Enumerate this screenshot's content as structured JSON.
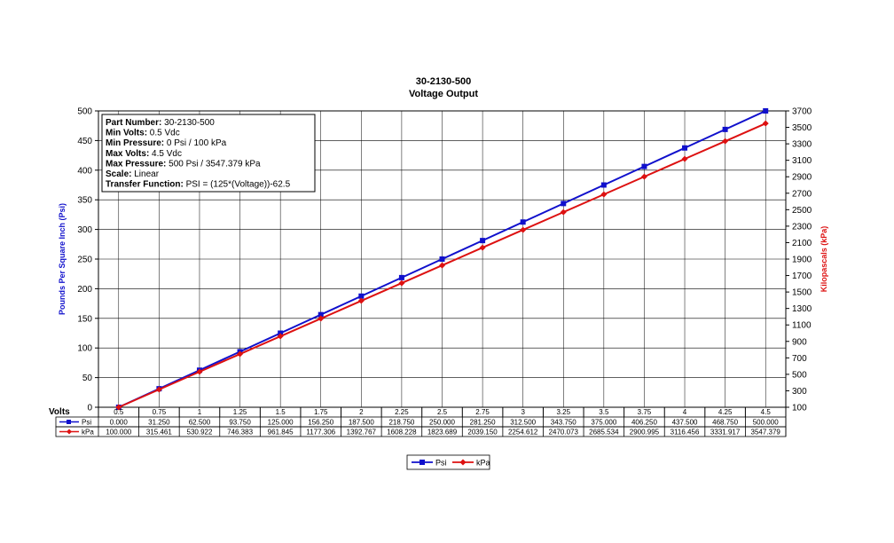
{
  "chart_data": {
    "type": "line",
    "title": "30-2130-500",
    "subtitle": "Voltage Output",
    "xlabel": "Volts",
    "ylabel": "Pounds Per Square Inch (Psi)",
    "y2label": "Kilopascals (kPa)",
    "x": [
      "0.5",
      "0.75",
      "1",
      "1.25",
      "1.5",
      "1.75",
      "2",
      "2.25",
      "2.5",
      "2.75",
      "3",
      "3.25",
      "3.5",
      "3.75",
      "4",
      "4.25",
      "4.5"
    ],
    "ylim": [
      0,
      500
    ],
    "y2lim": [
      100,
      3700
    ],
    "yticks": [
      0,
      50,
      100,
      150,
      200,
      250,
      300,
      350,
      400,
      450,
      500
    ],
    "y2ticks": [
      100,
      300,
      500,
      700,
      900,
      1100,
      1300,
      1500,
      1700,
      1900,
      2100,
      2300,
      2500,
      2700,
      2900,
      3100,
      3300,
      3500,
      3700
    ],
    "grid": true,
    "legend_position": "bottom-center",
    "series": [
      {
        "name": "Psi",
        "axis": "left",
        "color": "#1010CC",
        "marker": "square",
        "values": [
          0,
          31.25,
          62.5,
          93.75,
          125,
          156.25,
          187.5,
          218.75,
          250,
          281.25,
          312.5,
          343.75,
          375,
          406.25,
          437.5,
          468.75,
          500
        ],
        "table_values": [
          "0.000",
          "31.250",
          "62.500",
          "93.750",
          "125.000",
          "156.250",
          "187.500",
          "218.750",
          "250.000",
          "281.250",
          "312.500",
          "343.750",
          "375.000",
          "406.250",
          "437.500",
          "468.750",
          "500.000"
        ]
      },
      {
        "name": "kPa",
        "axis": "right",
        "color": "#DD1111",
        "marker": "diamond",
        "values": [
          100,
          315.461,
          530.922,
          746.383,
          961.845,
          1177.306,
          1392.767,
          1608.228,
          1823.689,
          2039.15,
          2254.612,
          2470.073,
          2685.534,
          2900.995,
          3116.456,
          3331.917,
          3547.379
        ],
        "table_values": [
          "100.000",
          "315.461",
          "530.922",
          "746.383",
          "961.845",
          "1177.306",
          "1392.767",
          "1608.228",
          "1823.689",
          "2039.150",
          "2254.612",
          "2470.073",
          "2685.534",
          "2900.995",
          "3116.456",
          "3331.917",
          "3547.379"
        ]
      }
    ],
    "annotation": [
      {
        "label": "Part Number:",
        "value": " 30-2130-500"
      },
      {
        "label": "Min Volts:",
        "value": " 0.5 Vdc"
      },
      {
        "label": "Min Pressure:",
        "value": " 0 Psi / 100 kPa"
      },
      {
        "label": "Max Volts:",
        "value": " 4.5 Vdc"
      },
      {
        "label": "Max Pressure:",
        "value": " 500 Psi / 3547.379 kPa"
      },
      {
        "label": "Scale:",
        "value": " Linear"
      },
      {
        "label": "Transfer Function:",
        "value": " PSI = (125*(Voltage))-62.5"
      }
    ]
  }
}
